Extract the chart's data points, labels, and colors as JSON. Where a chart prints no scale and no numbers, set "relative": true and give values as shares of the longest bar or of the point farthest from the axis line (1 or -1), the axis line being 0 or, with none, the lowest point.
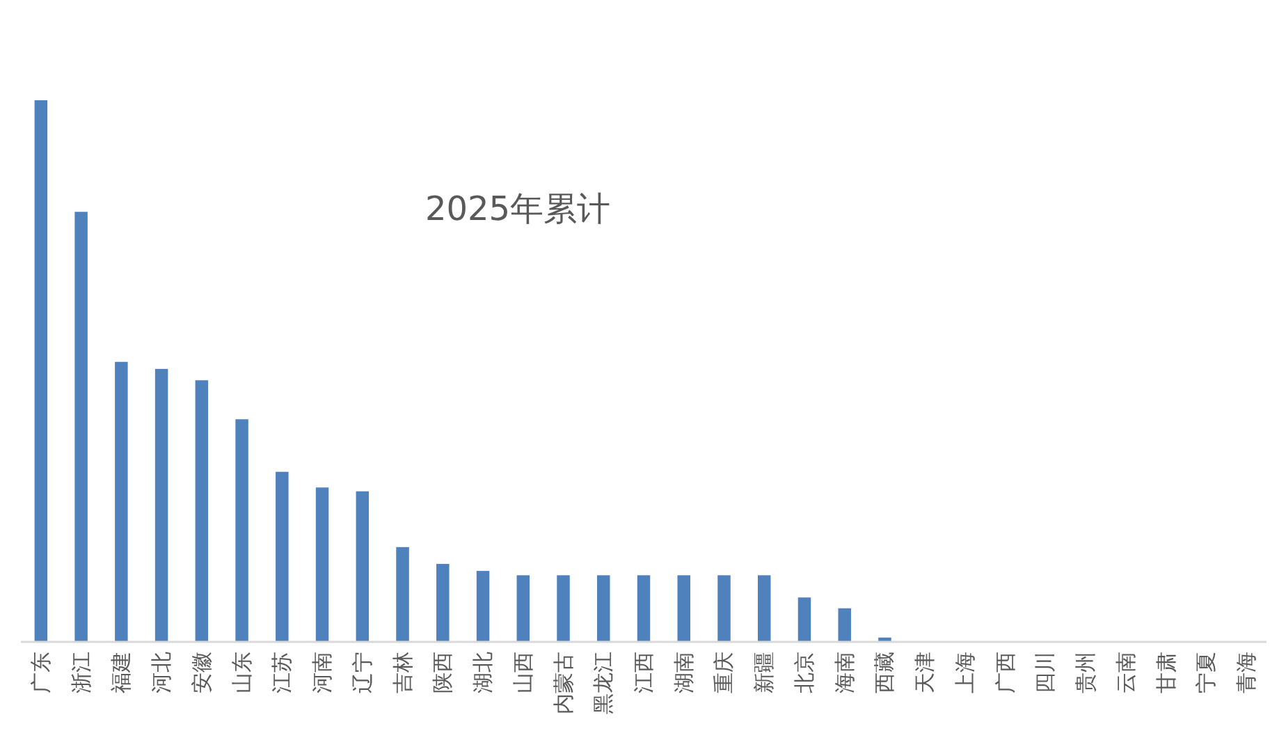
{
  "chart_data": {
    "type": "bar",
    "title": "2025年累计",
    "categories": [
      "广东",
      "浙江",
      "福建",
      "河北",
      "安徽",
      "山东",
      "江苏",
      "河南",
      "辽宁",
      "吉林",
      "陕西",
      "湖北",
      "山西",
      "内蒙古",
      "黑龙江",
      "江西",
      "湖南",
      "重庆",
      "新疆",
      "北京",
      "海南",
      "西藏",
      "天津",
      "上海",
      "广西",
      "四川",
      "贵州",
      "云南",
      "甘肃",
      "宁夏",
      "青海"
    ],
    "values": [
      1.0,
      0.794,
      0.517,
      0.504,
      0.483,
      0.411,
      0.314,
      0.285,
      0.278,
      0.175,
      0.144,
      0.131,
      0.123,
      0.123,
      0.123,
      0.123,
      0.123,
      0.123,
      0.123,
      0.082,
      0.062,
      0.008,
      0,
      0,
      0,
      0,
      0,
      0,
      0,
      0,
      0
    ],
    "color": "#4f81bd",
    "relative": true
  }
}
